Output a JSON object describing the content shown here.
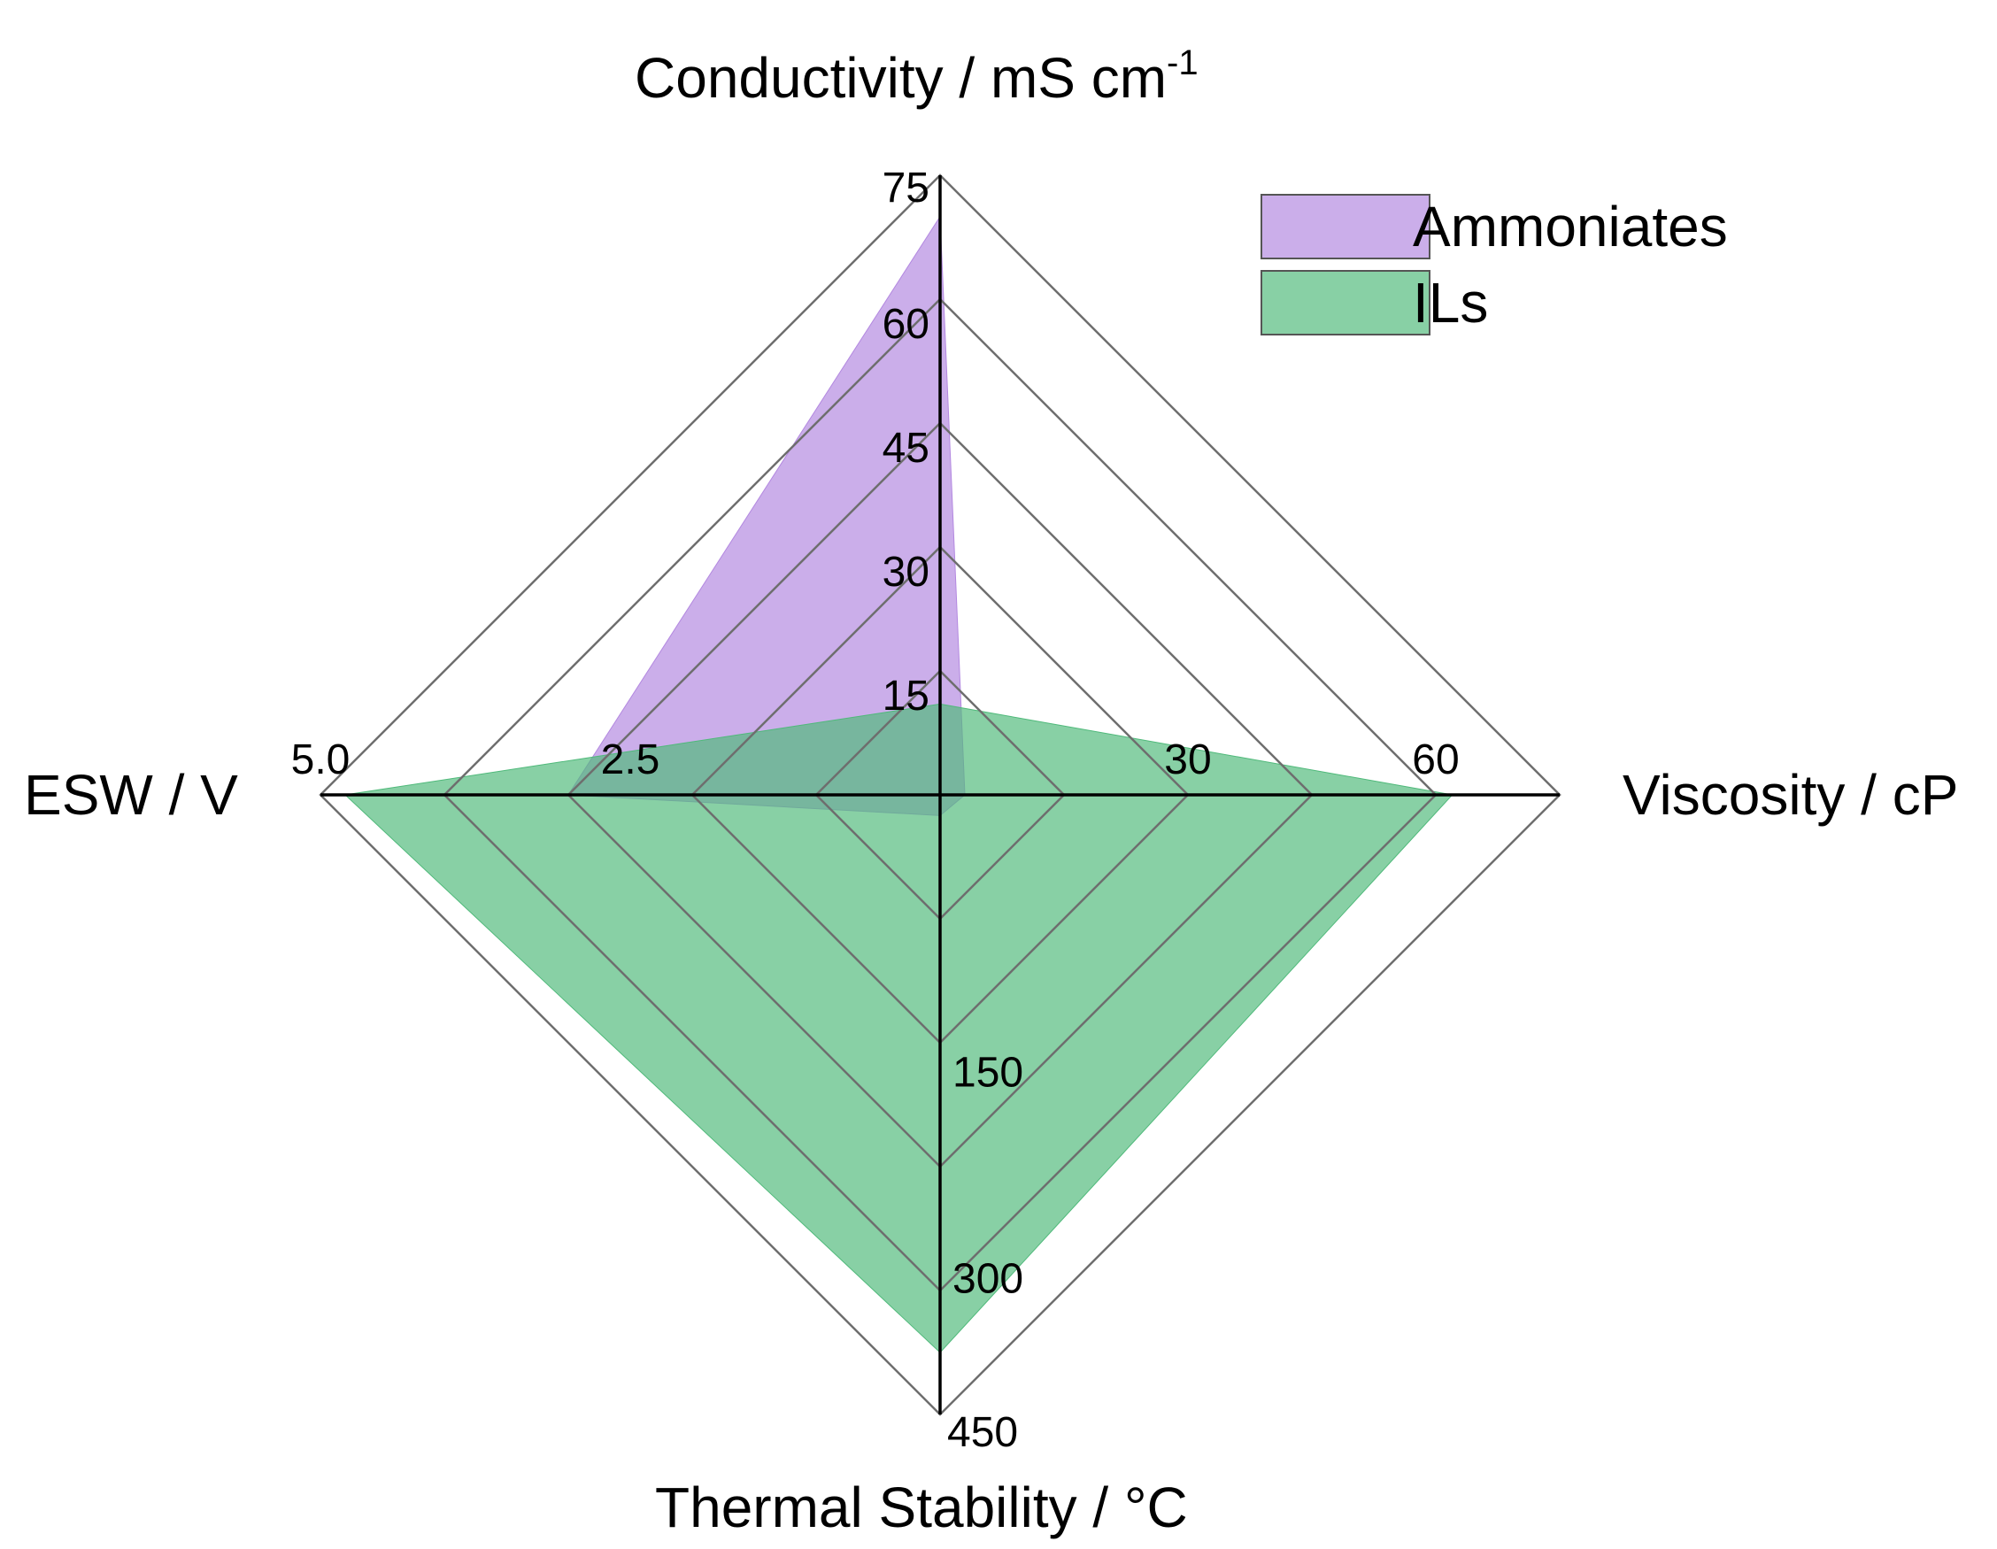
{
  "chart_data": {
    "type": "radar",
    "axes": [
      {
        "id": "conductivity",
        "label": "Conductivity / mS cm",
        "superscript": "-1",
        "max": 75,
        "ticks": [
          "15",
          "30",
          "45",
          "60",
          "75"
        ]
      },
      {
        "id": "viscosity",
        "label": "Viscosity / cP",
        "max": 75,
        "ticks": [
          "30",
          "60"
        ]
      },
      {
        "id": "thermal",
        "label": "Thermal Stability / °C",
        "max": 450,
        "ticks": [
          "150",
          "300",
          "450"
        ]
      },
      {
        "id": "esw",
        "label": "ESW / V",
        "max": 5.0,
        "ticks": [
          "2.5",
          "5.0"
        ]
      }
    ],
    "grid_levels": 5,
    "series": [
      {
        "name": "Ammoniates",
        "color": "#b388e0",
        "values": [
          70,
          3,
          15,
          3.0
        ]
      },
      {
        "name": "ILs",
        "color": "#4fb97a",
        "values": [
          11,
          62,
          405,
          4.8
        ]
      }
    ],
    "legend": {
      "position": "top-right",
      "entries": [
        "Ammoniates",
        "ILs"
      ]
    }
  }
}
